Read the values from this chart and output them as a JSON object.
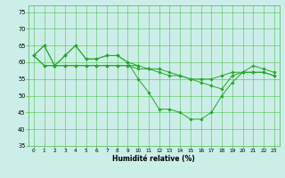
{
  "title": "",
  "xlabel": "Humidité relative (%)",
  "background_color": "#cceee8",
  "grid_color": "#44bb44",
  "line_color": "#22aa22",
  "ylim": [
    35,
    77
  ],
  "xlim": [
    -0.5,
    23.5
  ],
  "yticks": [
    35,
    40,
    45,
    50,
    55,
    60,
    65,
    70,
    75
  ],
  "xticks": [
    0,
    1,
    2,
    3,
    4,
    5,
    6,
    7,
    8,
    9,
    10,
    11,
    12,
    13,
    14,
    15,
    16,
    17,
    18,
    19,
    20,
    21,
    22,
    23
  ],
  "series": [
    [
      62,
      65,
      59,
      62,
      65,
      61,
      61,
      62,
      62,
      60,
      59,
      null,
      null,
      null,
      null,
      null,
      null,
      null,
      null,
      null,
      null,
      null,
      null,
      null
    ],
    [
      62,
      65,
      59,
      62,
      65,
      61,
      61,
      62,
      62,
      60,
      55,
      51,
      46,
      46,
      45,
      43,
      43,
      45,
      50,
      54,
      57,
      59,
      58,
      57
    ],
    [
      62,
      59,
      59,
      59,
      59,
      59,
      59,
      59,
      59,
      59,
      59,
      58,
      58,
      57,
      56,
      55,
      54,
      53,
      52,
      56,
      57,
      57,
      57,
      56
    ],
    [
      62,
      59,
      59,
      59,
      59,
      59,
      59,
      59,
      59,
      59,
      58,
      58,
      57,
      56,
      56,
      55,
      55,
      55,
      56,
      57,
      57,
      57,
      57,
      56
    ]
  ]
}
